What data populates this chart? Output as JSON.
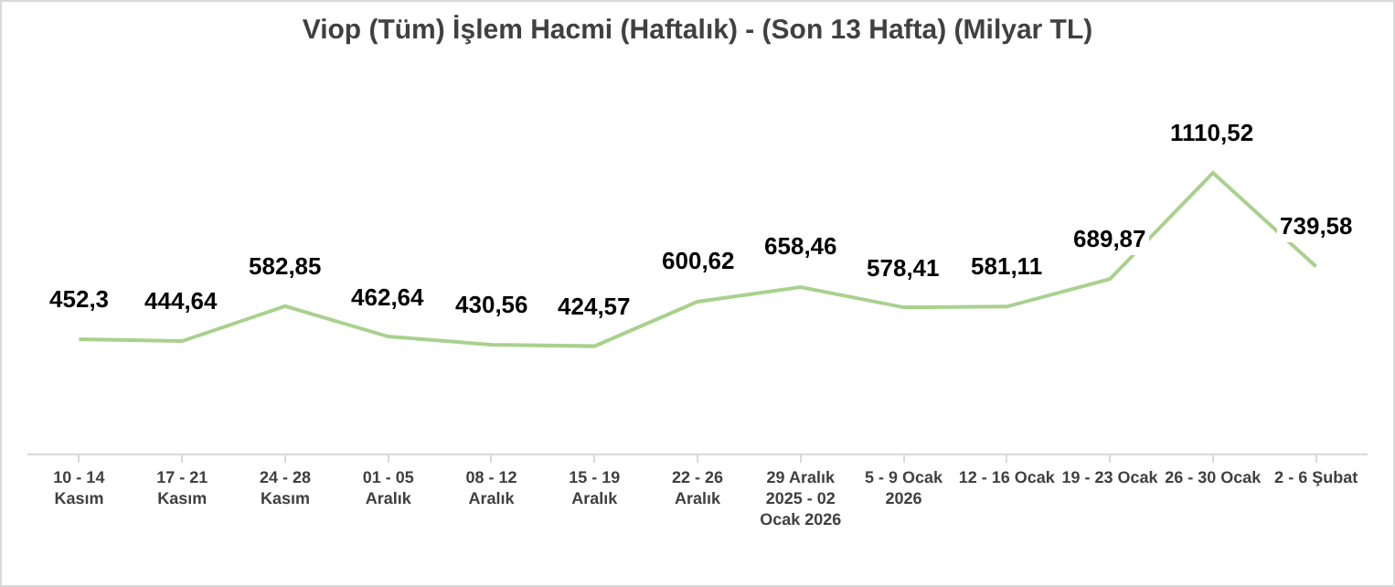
{
  "chart_data": {
    "type": "line",
    "title": "Viop (Tüm) İşlem Hacmi (Haftalık) - (Son 13 Hafta) (Milyar TL)",
    "categories": [
      "10 - 14 Kasım",
      "17 - 21 Kasım",
      "24 - 28 Kasım",
      "01 - 05 Aralık",
      "08 - 12 Aralık",
      "15 - 19 Aralık",
      "22 - 26 Aralık",
      "29 Aralık 2025 - 02 Ocak 2026",
      "5 - 9 Ocak 2026",
      "12 - 16 Ocak",
      "19 - 23 Ocak",
      "26 - 30 Ocak",
      "2 - 6 Şubat"
    ],
    "series": [
      {
        "color": "#a9d18e",
        "values": [
          452.3,
          444.64,
          582.85,
          462.64,
          430.56,
          424.57,
          600.62,
          658.46,
          578.41,
          581.11,
          689.87,
          1110.52,
          739.58
        ],
        "value_labels": [
          "452,3",
          "444,64",
          "582,85",
          "462,64",
          "430,56",
          "424,57",
          "600,62",
          "658,46",
          "578,41",
          "581,11",
          "689,87",
          "1110,52",
          "739,58"
        ]
      }
    ],
    "grid": false,
    "legend": false,
    "marker": "none",
    "line_style": "solid",
    "tick_labels": "x"
  }
}
